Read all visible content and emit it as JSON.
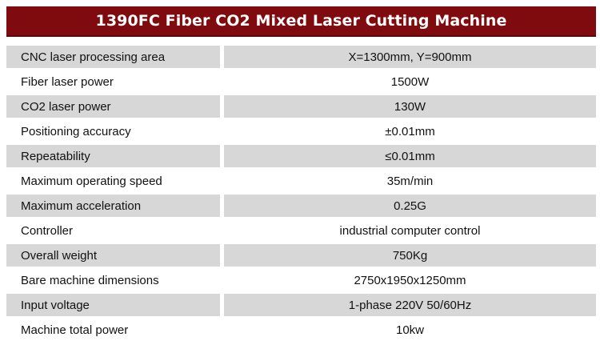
{
  "title": "1390FC Fiber CO2 Mixed Laser Cutting Machine",
  "colors": {
    "title_background": "#7f0b0f",
    "title_text": "#ffffff",
    "shaded_row": "#d7d7d7"
  },
  "specs": [
    {
      "label": "CNC laser processing area",
      "value": "X=1300mm, Y=900mm"
    },
    {
      "label": "Fiber laser power",
      "value": "1500W"
    },
    {
      "label": "CO2 laser power",
      "value": "130W"
    },
    {
      "label": "Positioning accuracy",
      "value": "±0.01mm"
    },
    {
      "label": "Repeatability",
      "value": "≤0.01mm"
    },
    {
      "label": "Maximum operating speed",
      "value": "35m/min"
    },
    {
      "label": "Maximum acceleration",
      "value": "0.25G"
    },
    {
      "label": "Controller",
      "value": "industrial computer control"
    },
    {
      "label": "Overall weight",
      "value": "750Kg"
    },
    {
      "label": "Bare machine dimensions",
      "value": "2750x1950x1250mm"
    },
    {
      "label": "Input voltage",
      "value": "1-phase 220V 50/60Hz"
    },
    {
      "label": "Machine total power",
      "value": "10kw"
    }
  ]
}
